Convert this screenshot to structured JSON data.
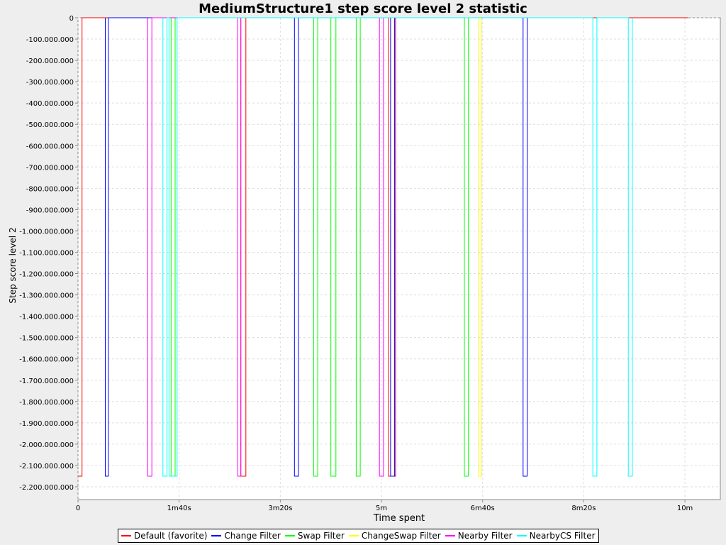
{
  "chart_data": {
    "type": "line",
    "title": "MediumStructure1 step score level 2 statistic",
    "xlabel": "Time spent",
    "ylabel": "Step score level 2",
    "x_unit": "seconds",
    "xlim": [
      0,
      635
    ],
    "ylim": [
      -2260000000,
      0
    ],
    "grid": true,
    "legend_position": "bottom",
    "x_ticks": [
      {
        "value": 0,
        "label": "0"
      },
      {
        "value": 100,
        "label": "1m40s"
      },
      {
        "value": 200,
        "label": "3m20s"
      },
      {
        "value": 300,
        "label": "5m"
      },
      {
        "value": 400,
        "label": "6m40s"
      },
      {
        "value": 500,
        "label": "8m20s"
      },
      {
        "value": 600,
        "label": "10m"
      }
    ],
    "y_ticks": [
      {
        "value": 0,
        "label": "0"
      },
      {
        "value": -100000000,
        "label": "-100.000.000"
      },
      {
        "value": -200000000,
        "label": "-200.000.000"
      },
      {
        "value": -300000000,
        "label": "-300.000.000"
      },
      {
        "value": -400000000,
        "label": "-400.000.000"
      },
      {
        "value": -500000000,
        "label": "-500.000.000"
      },
      {
        "value": -600000000,
        "label": "-600.000.000"
      },
      {
        "value": -700000000,
        "label": "-700.000.000"
      },
      {
        "value": -800000000,
        "label": "-800.000.000"
      },
      {
        "value": -900000000,
        "label": "-900.000.000"
      },
      {
        "value": -1000000000,
        "label": "-1.000.000.000"
      },
      {
        "value": -1100000000,
        "label": "-1.100.000.000"
      },
      {
        "value": -1200000000,
        "label": "-1.200.000.000"
      },
      {
        "value": -1300000000,
        "label": "-1.300.000.000"
      },
      {
        "value": -1400000000,
        "label": "-1.400.000.000"
      },
      {
        "value": -1500000000,
        "label": "-1.500.000.000"
      },
      {
        "value": -1600000000,
        "label": "-1.600.000.000"
      },
      {
        "value": -1700000000,
        "label": "-1.700.000.000"
      },
      {
        "value": -1800000000,
        "label": "-1.800.000.000"
      },
      {
        "value": -1900000000,
        "label": "-1.900.000.000"
      },
      {
        "value": -2000000000,
        "label": "-2.000.000.000"
      },
      {
        "value": -2100000000,
        "label": "-2.100.000.000"
      },
      {
        "value": -2200000000,
        "label": "-2.200.000.000"
      }
    ],
    "series": [
      {
        "name": "Default (favorite)",
        "color": "#ff0000",
        "points": [
          [
            0,
            -2150000000
          ],
          [
            4,
            -2150000000
          ],
          [
            4,
            0
          ],
          [
            161,
            0
          ],
          [
            161,
            -2150000000
          ],
          [
            166,
            -2150000000
          ],
          [
            166,
            0
          ],
          [
            307,
            0
          ],
          [
            307,
            -2150000000
          ],
          [
            314,
            -2150000000
          ],
          [
            314,
            0
          ],
          [
            603,
            0
          ]
        ]
      },
      {
        "name": "Change Filter",
        "color": "#0000ff",
        "points": [
          [
            27,
            0
          ],
          [
            27,
            -2150000000
          ],
          [
            30,
            -2150000000
          ],
          [
            30,
            0
          ],
          [
            214,
            0
          ],
          [
            214,
            -2150000000
          ],
          [
            218,
            -2150000000
          ],
          [
            218,
            0
          ],
          [
            309,
            0
          ],
          [
            309,
            -2150000000
          ],
          [
            313,
            -2150000000
          ],
          [
            313,
            0
          ],
          [
            440,
            0
          ],
          [
            440,
            -2150000000
          ],
          [
            444,
            -2150000000
          ],
          [
            444,
            0
          ]
        ]
      },
      {
        "name": "Swap Filter",
        "color": "#00ff00",
        "points": [
          [
            92,
            0
          ],
          [
            92,
            -2150000000
          ],
          [
            96,
            -2150000000
          ],
          [
            96,
            0
          ],
          [
            233,
            0
          ],
          [
            233,
            -2150000000
          ],
          [
            237,
            -2150000000
          ],
          [
            237,
            0
          ],
          [
            250,
            0
          ],
          [
            250,
            -2150000000
          ],
          [
            255,
            -2150000000
          ],
          [
            255,
            0
          ],
          [
            275,
            0
          ],
          [
            275,
            -2150000000
          ],
          [
            279,
            -2150000000
          ],
          [
            279,
            0
          ],
          [
            382,
            0
          ],
          [
            382,
            -2150000000
          ],
          [
            386,
            -2150000000
          ],
          [
            386,
            0
          ]
        ]
      },
      {
        "name": "ChangeSwap Filter",
        "color": "#ffff00",
        "points": [
          [
            396,
            0
          ],
          [
            396,
            -2150000000
          ],
          [
            399,
            -2150000000
          ],
          [
            399,
            0
          ]
        ]
      },
      {
        "name": "Nearby Filter",
        "color": "#ff00ff",
        "points": [
          [
            69,
            0
          ],
          [
            69,
            -2150000000
          ],
          [
            73,
            -2150000000
          ],
          [
            73,
            0
          ],
          [
            158,
            0
          ],
          [
            158,
            -2150000000
          ],
          [
            161,
            -2150000000
          ],
          [
            161,
            0
          ],
          [
            298,
            0
          ],
          [
            298,
            -2150000000
          ],
          [
            302,
            -2150000000
          ],
          [
            302,
            0
          ]
        ]
      },
      {
        "name": "NearbyCS Filter",
        "color": "#00ffff",
        "points": [
          [
            84,
            0
          ],
          [
            84,
            -2150000000
          ],
          [
            88,
            -2150000000
          ],
          [
            88,
            0
          ],
          [
            90,
            0
          ],
          [
            90,
            -2150000000
          ],
          [
            98,
            -2150000000
          ],
          [
            98,
            0
          ],
          [
            509,
            0
          ],
          [
            509,
            -2150000000
          ],
          [
            513,
            -2150000000
          ],
          [
            513,
            0
          ],
          [
            544,
            0
          ],
          [
            544,
            -2150000000
          ],
          [
            548,
            -2150000000
          ],
          [
            548,
            0
          ]
        ]
      }
    ]
  }
}
